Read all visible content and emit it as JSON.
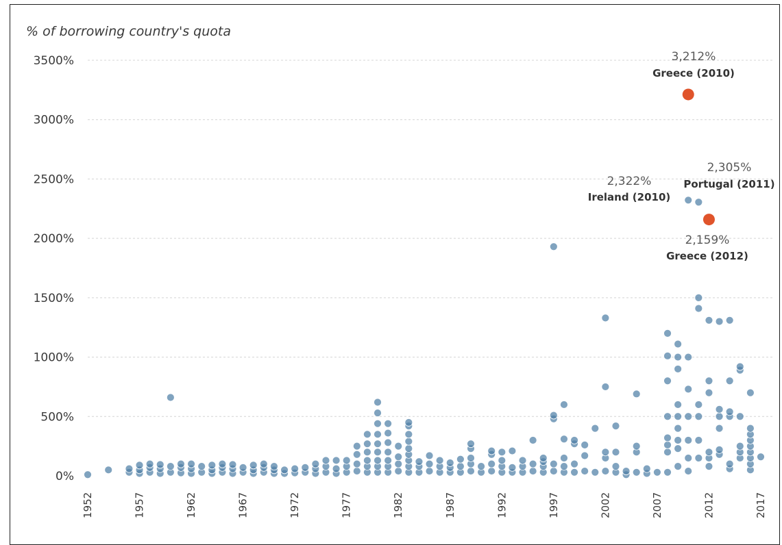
{
  "chart_data": {
    "type": "scatter",
    "title": "",
    "ylabel": "% of borrowing country's quota",
    "xlabel": "",
    "xlim": [
      1952,
      2018
    ],
    "ylim": [
      0,
      3500
    ],
    "y_ticks": [
      "0%",
      "500%",
      "1000%",
      "1500%",
      "2000%",
      "2500%",
      "3000%",
      "3500%"
    ],
    "y_tick_values": [
      0,
      500,
      1000,
      1500,
      2000,
      2500,
      3000,
      3500
    ],
    "x_ticks": [
      "1952",
      "1957",
      "1962",
      "1967",
      "1972",
      "1977",
      "1982",
      "1987",
      "1992",
      "1997",
      "2002",
      "2007",
      "2012",
      "2017"
    ],
    "x_tick_values": [
      1952,
      1957,
      1962,
      1967,
      1972,
      1977,
      1982,
      1987,
      1992,
      1997,
      2002,
      2007,
      2012,
      2017
    ],
    "grid": true,
    "colors": {
      "points": "#4f7fa6",
      "highlight": "#e0542b",
      "grid": "#d4d4d4"
    },
    "series": [
      {
        "points": [
          [
            1952,
            10
          ],
          [
            1954,
            50
          ],
          [
            1956,
            30
          ],
          [
            1956,
            60
          ],
          [
            1957,
            20
          ],
          [
            1957,
            50
          ],
          [
            1957,
            90
          ],
          [
            1958,
            30
          ],
          [
            1958,
            70
          ],
          [
            1958,
            100
          ],
          [
            1959,
            20
          ],
          [
            1959,
            60
          ],
          [
            1959,
            95
          ],
          [
            1960,
            30
          ],
          [
            1960,
            80
          ],
          [
            1960,
            660
          ],
          [
            1961,
            25
          ],
          [
            1961,
            70
          ],
          [
            1961,
            100
          ],
          [
            1962,
            20
          ],
          [
            1962,
            60
          ],
          [
            1962,
            100
          ],
          [
            1963,
            30
          ],
          [
            1963,
            80
          ],
          [
            1964,
            20
          ],
          [
            1964,
            50
          ],
          [
            1964,
            90
          ],
          [
            1965,
            30
          ],
          [
            1965,
            70
          ],
          [
            1965,
            100
          ],
          [
            1966,
            20
          ],
          [
            1966,
            60
          ],
          [
            1966,
            95
          ],
          [
            1967,
            30
          ],
          [
            1967,
            70
          ],
          [
            1968,
            20
          ],
          [
            1968,
            50
          ],
          [
            1968,
            90
          ],
          [
            1969,
            30
          ],
          [
            1969,
            70
          ],
          [
            1969,
            100
          ],
          [
            1970,
            20
          ],
          [
            1970,
            50
          ],
          [
            1970,
            80
          ],
          [
            1971,
            20
          ],
          [
            1971,
            50
          ],
          [
            1972,
            25
          ],
          [
            1972,
            60
          ],
          [
            1973,
            30
          ],
          [
            1973,
            70
          ],
          [
            1974,
            20
          ],
          [
            1974,
            60
          ],
          [
            1974,
            100
          ],
          [
            1975,
            30
          ],
          [
            1975,
            80
          ],
          [
            1975,
            130
          ],
          [
            1976,
            20
          ],
          [
            1976,
            60
          ],
          [
            1976,
            130
          ],
          [
            1977,
            30
          ],
          [
            1977,
            80
          ],
          [
            1977,
            130
          ],
          [
            1978,
            40
          ],
          [
            1978,
            100
          ],
          [
            1978,
            180
          ],
          [
            1978,
            250
          ],
          [
            1979,
            30
          ],
          [
            1979,
            80
          ],
          [
            1979,
            130
          ],
          [
            1979,
            200
          ],
          [
            1979,
            270
          ],
          [
            1979,
            350
          ],
          [
            1980,
            30
          ],
          [
            1980,
            80
          ],
          [
            1980,
            130
          ],
          [
            1980,
            200
          ],
          [
            1980,
            270
          ],
          [
            1980,
            350
          ],
          [
            1980,
            440
          ],
          [
            1980,
            530
          ],
          [
            1980,
            620
          ],
          [
            1981,
            30
          ],
          [
            1981,
            80
          ],
          [
            1981,
            130
          ],
          [
            1981,
            200
          ],
          [
            1981,
            280
          ],
          [
            1981,
            360
          ],
          [
            1981,
            440
          ],
          [
            1982,
            40
          ],
          [
            1982,
            100
          ],
          [
            1982,
            160
          ],
          [
            1982,
            250
          ],
          [
            1983,
            30
          ],
          [
            1983,
            80
          ],
          [
            1983,
            130
          ],
          [
            1983,
            180
          ],
          [
            1983,
            230
          ],
          [
            1983,
            290
          ],
          [
            1983,
            350
          ],
          [
            1983,
            420
          ],
          [
            1983,
            450
          ],
          [
            1984,
            30
          ],
          [
            1984,
            80
          ],
          [
            1984,
            120
          ],
          [
            1985,
            40
          ],
          [
            1985,
            100
          ],
          [
            1985,
            170
          ],
          [
            1986,
            30
          ],
          [
            1986,
            80
          ],
          [
            1986,
            130
          ],
          [
            1987,
            30
          ],
          [
            1987,
            70
          ],
          [
            1987,
            110
          ],
          [
            1988,
            30
          ],
          [
            1988,
            80
          ],
          [
            1988,
            140
          ],
          [
            1989,
            40
          ],
          [
            1989,
            100
          ],
          [
            1989,
            150
          ],
          [
            1989,
            230
          ],
          [
            1989,
            270
          ],
          [
            1990,
            30
          ],
          [
            1990,
            80
          ],
          [
            1991,
            40
          ],
          [
            1991,
            100
          ],
          [
            1991,
            180
          ],
          [
            1991,
            210
          ],
          [
            1992,
            30
          ],
          [
            1992,
            80
          ],
          [
            1992,
            130
          ],
          [
            1992,
            200
          ],
          [
            1993,
            30
          ],
          [
            1993,
            70
          ],
          [
            1993,
            210
          ],
          [
            1994,
            30
          ],
          [
            1994,
            80
          ],
          [
            1994,
            130
          ],
          [
            1995,
            40
          ],
          [
            1995,
            100
          ],
          [
            1995,
            300
          ],
          [
            1996,
            30
          ],
          [
            1996,
            80
          ],
          [
            1996,
            120
          ],
          [
            1996,
            150
          ],
          [
            1997,
            40
          ],
          [
            1997,
            100
          ],
          [
            1997,
            480
          ],
          [
            1997,
            510
          ],
          [
            1997,
            1930
          ],
          [
            1998,
            30
          ],
          [
            1998,
            80
          ],
          [
            1998,
            150
          ],
          [
            1998,
            310
          ],
          [
            1998,
            600
          ],
          [
            1999,
            30
          ],
          [
            1999,
            100
          ],
          [
            1999,
            270
          ],
          [
            1999,
            300
          ],
          [
            2000,
            40
          ],
          [
            2000,
            170
          ],
          [
            2000,
            260
          ],
          [
            2001,
            30
          ],
          [
            2001,
            400
          ],
          [
            2002,
            40
          ],
          [
            2002,
            150
          ],
          [
            2002,
            200
          ],
          [
            2002,
            750
          ],
          [
            2002,
            1330
          ],
          [
            2003,
            30
          ],
          [
            2003,
            80
          ],
          [
            2003,
            200
          ],
          [
            2003,
            420
          ],
          [
            2004,
            10
          ],
          [
            2004,
            40
          ],
          [
            2005,
            30
          ],
          [
            2005,
            200
          ],
          [
            2005,
            250
          ],
          [
            2005,
            690
          ],
          [
            2006,
            20
          ],
          [
            2006,
            60
          ],
          [
            2007,
            30
          ],
          [
            2008,
            30
          ],
          [
            2008,
            200
          ],
          [
            2008,
            260
          ],
          [
            2008,
            320
          ],
          [
            2008,
            500
          ],
          [
            2008,
            800
          ],
          [
            2008,
            1010
          ],
          [
            2008,
            1200
          ],
          [
            2009,
            80
          ],
          [
            2009,
            230
          ],
          [
            2009,
            300
          ],
          [
            2009,
            400
          ],
          [
            2009,
            500
          ],
          [
            2009,
            600
          ],
          [
            2009,
            900
          ],
          [
            2009,
            1000
          ],
          [
            2009,
            1110
          ],
          [
            2010,
            40
          ],
          [
            2010,
            150
          ],
          [
            2010,
            300
          ],
          [
            2010,
            500
          ],
          [
            2010,
            730
          ],
          [
            2010,
            1000
          ],
          [
            2010,
            2322
          ],
          [
            2011,
            150
          ],
          [
            2011,
            300
          ],
          [
            2011,
            500
          ],
          [
            2011,
            600
          ],
          [
            2011,
            1410
          ],
          [
            2011,
            1500
          ],
          [
            2011,
            2305
          ],
          [
            2012,
            80
          ],
          [
            2012,
            150
          ],
          [
            2012,
            200
          ],
          [
            2012,
            700
          ],
          [
            2012,
            800
          ],
          [
            2012,
            1310
          ],
          [
            2013,
            180
          ],
          [
            2013,
            220
          ],
          [
            2013,
            400
          ],
          [
            2013,
            500
          ],
          [
            2013,
            560
          ],
          [
            2013,
            1300
          ],
          [
            2014,
            60
          ],
          [
            2014,
            100
          ],
          [
            2014,
            500
          ],
          [
            2014,
            540
          ],
          [
            2014,
            800
          ],
          [
            2014,
            1310
          ],
          [
            2015,
            150
          ],
          [
            2015,
            200
          ],
          [
            2015,
            250
          ],
          [
            2015,
            500
          ],
          [
            2015,
            890
          ],
          [
            2015,
            920
          ],
          [
            2016,
            50
          ],
          [
            2016,
            100
          ],
          [
            2016,
            150
          ],
          [
            2016,
            200
          ],
          [
            2016,
            250
          ],
          [
            2016,
            300
          ],
          [
            2016,
            350
          ],
          [
            2016,
            400
          ],
          [
            2016,
            700
          ],
          [
            2017,
            160
          ]
        ]
      },
      {
        "points": [
          [
            2010,
            3212
          ],
          [
            2012,
            2159
          ]
        ]
      }
    ],
    "annotations": [
      {
        "value": "3,212%",
        "label": "Greece (2010)"
      },
      {
        "value": "2,322%",
        "label": "Ireland (2010)"
      },
      {
        "value": "2,305%",
        "label": "Portugal (2011)"
      },
      {
        "value": "2,159%",
        "label": "Greece (2012)"
      }
    ]
  }
}
